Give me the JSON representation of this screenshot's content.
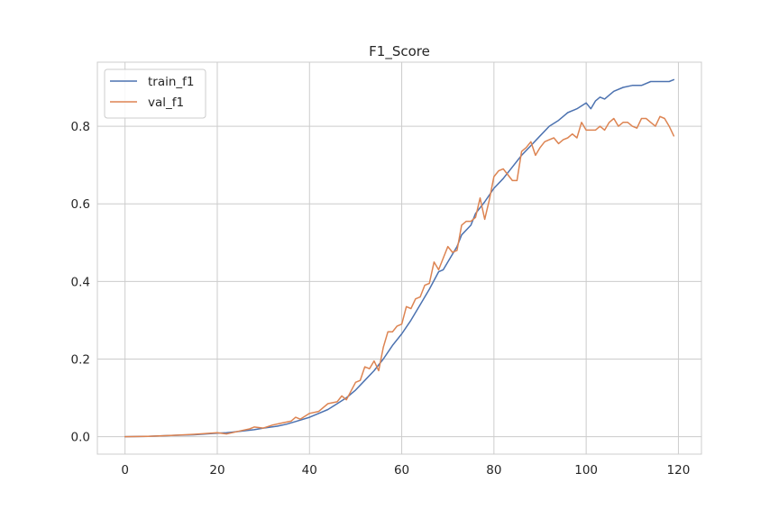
{
  "chart_data": {
    "type": "line",
    "title": "F1_Score",
    "xlabel": "",
    "ylabel": "",
    "xlim": [
      -6,
      125
    ],
    "ylim": [
      -0.045,
      0.965
    ],
    "xticks": [
      0,
      20,
      40,
      60,
      80,
      100,
      120
    ],
    "yticks": [
      0.0,
      0.2,
      0.4,
      0.6,
      0.8
    ],
    "ytick_labels": [
      "0.0",
      "0.2",
      "0.4",
      "0.6",
      "0.8"
    ],
    "grid": true,
    "legend_position": "top-left",
    "series": [
      {
        "name": "train_f1",
        "color": "#4c72b0",
        "x": [
          0,
          5,
          10,
          15,
          20,
          22,
          25,
          28,
          30,
          33,
          35,
          37,
          40,
          42,
          44,
          46,
          48,
          50,
          52,
          54,
          56,
          58,
          60,
          62,
          64,
          66,
          68,
          69,
          70,
          72,
          73,
          75,
          76,
          78,
          80,
          82,
          84,
          86,
          88,
          90,
          92,
          94,
          96,
          98,
          100,
          101,
          102,
          103,
          104,
          105,
          106,
          108,
          110,
          112,
          114,
          116,
          118,
          119
        ],
        "y": [
          0.0,
          0.001,
          0.003,
          0.005,
          0.009,
          0.01,
          0.014,
          0.018,
          0.022,
          0.027,
          0.032,
          0.039,
          0.05,
          0.06,
          0.07,
          0.085,
          0.1,
          0.12,
          0.145,
          0.17,
          0.2,
          0.235,
          0.265,
          0.3,
          0.34,
          0.38,
          0.425,
          0.43,
          0.45,
          0.49,
          0.52,
          0.545,
          0.575,
          0.605,
          0.64,
          0.665,
          0.695,
          0.725,
          0.75,
          0.775,
          0.8,
          0.815,
          0.835,
          0.845,
          0.86,
          0.845,
          0.865,
          0.875,
          0.87,
          0.88,
          0.89,
          0.9,
          0.905,
          0.905,
          0.915,
          0.915,
          0.915,
          0.92
        ]
      },
      {
        "name": "val_f1",
        "color": "#dd8452",
        "x": [
          0,
          5,
          10,
          15,
          20,
          22,
          25,
          27,
          28,
          30,
          32,
          34,
          36,
          37,
          38,
          40,
          42,
          44,
          46,
          47,
          48,
          50,
          51,
          52,
          53,
          54,
          55,
          56,
          57,
          58,
          59,
          60,
          61,
          62,
          63,
          64,
          65,
          66,
          67,
          68,
          69,
          70,
          71,
          72,
          73,
          74,
          75,
          76,
          77,
          78,
          79,
          80,
          81,
          82,
          83,
          84,
          85,
          86,
          87,
          88,
          89,
          90,
          91,
          92,
          93,
          94,
          95,
          96,
          97,
          98,
          99,
          100,
          101,
          102,
          103,
          104,
          105,
          106,
          107,
          108,
          109,
          110,
          111,
          112,
          113,
          114,
          115,
          116,
          117,
          118,
          119
        ],
        "y": [
          0.0,
          0.001,
          0.003,
          0.006,
          0.01,
          0.007,
          0.015,
          0.02,
          0.025,
          0.022,
          0.03,
          0.035,
          0.04,
          0.05,
          0.045,
          0.06,
          0.065,
          0.085,
          0.09,
          0.105,
          0.095,
          0.14,
          0.145,
          0.18,
          0.175,
          0.195,
          0.17,
          0.23,
          0.27,
          0.27,
          0.285,
          0.29,
          0.335,
          0.33,
          0.355,
          0.36,
          0.39,
          0.395,
          0.45,
          0.43,
          0.46,
          0.49,
          0.475,
          0.48,
          0.545,
          0.555,
          0.555,
          0.565,
          0.615,
          0.56,
          0.61,
          0.67,
          0.685,
          0.69,
          0.675,
          0.66,
          0.66,
          0.735,
          0.745,
          0.76,
          0.725,
          0.745,
          0.76,
          0.765,
          0.77,
          0.755,
          0.765,
          0.77,
          0.78,
          0.77,
          0.81,
          0.79,
          0.79,
          0.79,
          0.8,
          0.79,
          0.81,
          0.82,
          0.8,
          0.81,
          0.81,
          0.8,
          0.795,
          0.82,
          0.82,
          0.81,
          0.8,
          0.825,
          0.82,
          0.8,
          0.775
        ]
      }
    ]
  }
}
